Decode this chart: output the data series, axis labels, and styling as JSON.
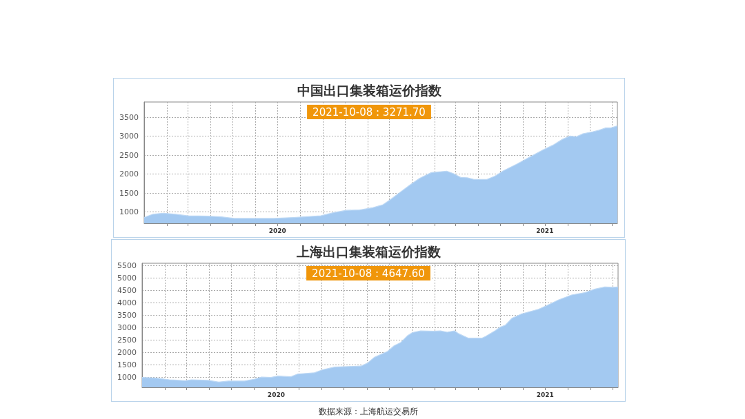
{
  "chart_data": [
    {
      "type": "area",
      "title": "中国出口集装箱运价指数",
      "color": "#a3c9f1",
      "x": [
        "2020-01-01",
        "2020-01-13",
        "2020-01-27",
        "2020-02-13",
        "2020-03-01",
        "2020-03-28",
        "2020-04-15",
        "2020-05-03",
        "2020-06-04",
        "2020-06-26",
        "2020-07-23",
        "2020-08-29",
        "2020-09-16",
        "2020-10-03",
        "2020-10-21",
        "2020-11-08",
        "2020-11-22",
        "2020-12-01",
        "2020-12-14",
        "2020-12-29",
        "2021-01-11",
        "2021-01-27",
        "2021-02-07",
        "2021-02-17",
        "2021-02-26",
        "2021-03-08",
        "2021-03-17",
        "2021-03-26",
        "2021-04-13",
        "2021-04-24",
        "2021-05-05",
        "2021-05-23",
        "2021-06-10",
        "2021-06-28",
        "2021-07-12",
        "2021-07-25",
        "2021-08-04",
        "2021-08-13",
        "2021-08-22",
        "2021-09-04",
        "2021-09-13",
        "2021-09-22",
        "2021-09-29",
        "2021-10-08"
      ],
      "values": [
        854,
        940,
        966,
        940,
        897,
        888,
        871,
        828,
        828,
        828,
        854,
        897,
        983,
        1043,
        1052,
        1112,
        1189,
        1309,
        1498,
        1713,
        1885,
        2039,
        2057,
        2074,
        2014,
        1911,
        1902,
        1859,
        1859,
        1945,
        2082,
        2254,
        2443,
        2632,
        2761,
        2916,
        3001,
        2984,
        3062,
        3113,
        3156,
        3216,
        3216,
        3271.7
      ],
      "xlim": [
        "2020-01-01",
        "2021-10-08"
      ],
      "xticks": [
        {
          "value": "2020-02-01",
          "label": null
        },
        {
          "value": "2020-03-01",
          "label": null
        },
        {
          "value": "2020-04-01",
          "label": null
        },
        {
          "value": "2020-05-01",
          "label": null
        },
        {
          "value": "2020-06-01",
          "label": null
        },
        {
          "value": "2020-07-01",
          "label": "2020"
        },
        {
          "value": "2020-08-01",
          "label": null
        },
        {
          "value": "2020-09-01",
          "label": null
        },
        {
          "value": "2020-10-01",
          "label": null
        },
        {
          "value": "2020-11-01",
          "label": null
        },
        {
          "value": "2020-12-01",
          "label": null
        },
        {
          "value": "2021-01-01",
          "label": null
        },
        {
          "value": "2021-02-01",
          "label": null
        },
        {
          "value": "2021-03-01",
          "label": null
        },
        {
          "value": "2021-04-01",
          "label": null
        },
        {
          "value": "2021-05-01",
          "label": null
        },
        {
          "value": "2021-06-01",
          "label": null
        },
        {
          "value": "2021-07-01",
          "label": "2021"
        },
        {
          "value": "2021-08-01",
          "label": null
        },
        {
          "value": "2021-09-01",
          "label": null
        },
        {
          "value": "2021-10-01",
          "label": null
        }
      ],
      "ylim": [
        700,
        3900
      ],
      "yticks": [
        1000,
        1500,
        2000,
        2500,
        3000,
        3500
      ],
      "grid": true,
      "marker": "none",
      "annotations": [
        "2021-10-08 : 3271.70"
      ]
    },
    {
      "type": "area",
      "title": "上海出口集装箱运价指数",
      "color": "#a3c9f1",
      "x": [
        "2020-01-01",
        "2020-01-20",
        "2020-02-07",
        "2020-02-29",
        "2020-03-08",
        "2020-03-31",
        "2020-04-14",
        "2020-04-27",
        "2020-05-19",
        "2020-06-02",
        "2020-06-11",
        "2020-06-24",
        "2020-07-03",
        "2020-07-21",
        "2020-07-30",
        "2020-08-22",
        "2020-09-02",
        "2020-09-18",
        "2020-10-24",
        "2020-11-02",
        "2020-11-11",
        "2020-11-29",
        "2020-12-08",
        "2020-12-17",
        "2020-12-26",
        "2021-01-02",
        "2021-01-13",
        "2021-01-31",
        "2021-02-09",
        "2021-02-18",
        "2021-02-28",
        "2021-03-06",
        "2021-03-19",
        "2021-04-06",
        "2021-04-11",
        "2021-04-24",
        "2021-05-01",
        "2021-05-08",
        "2021-05-17",
        "2021-05-30",
        "2021-06-22",
        "2021-07-05",
        "2021-07-19",
        "2021-08-06",
        "2021-08-24",
        "2021-09-07",
        "2021-09-20",
        "2021-10-01",
        "2021-10-08"
      ],
      "values": [
        1000,
        973,
        906,
        866,
        906,
        879,
        812,
        853,
        853,
        933,
        1013,
        1000,
        1054,
        1027,
        1134,
        1188,
        1308,
        1415,
        1456,
        1576,
        1804,
        2045,
        2273,
        2407,
        2675,
        2809,
        2876,
        2863,
        2876,
        2822,
        2876,
        2755,
        2581,
        2581,
        2648,
        2876,
        3023,
        3104,
        3385,
        3559,
        3747,
        3921,
        4122,
        4323,
        4417,
        4564,
        4645,
        4631,
        4647.6
      ],
      "xlim": [
        "2020-01-01",
        "2021-10-08"
      ],
      "xticks": [
        {
          "value": "2020-02-01",
          "label": null
        },
        {
          "value": "2020-03-01",
          "label": null
        },
        {
          "value": "2020-04-01",
          "label": null
        },
        {
          "value": "2020-05-01",
          "label": null
        },
        {
          "value": "2020-06-01",
          "label": null
        },
        {
          "value": "2020-07-01",
          "label": "2020"
        },
        {
          "value": "2020-08-01",
          "label": null
        },
        {
          "value": "2020-09-01",
          "label": null
        },
        {
          "value": "2020-10-01",
          "label": null
        },
        {
          "value": "2020-11-01",
          "label": null
        },
        {
          "value": "2020-12-01",
          "label": null
        },
        {
          "value": "2021-01-01",
          "label": null
        },
        {
          "value": "2021-02-01",
          "label": null
        },
        {
          "value": "2021-03-01",
          "label": null
        },
        {
          "value": "2021-04-01",
          "label": null
        },
        {
          "value": "2021-05-01",
          "label": null
        },
        {
          "value": "2021-06-01",
          "label": null
        },
        {
          "value": "2021-07-01",
          "label": "2021"
        },
        {
          "value": "2021-08-01",
          "label": null
        },
        {
          "value": "2021-09-01",
          "label": null
        },
        {
          "value": "2021-10-01",
          "label": null
        }
      ],
      "ylim": [
        600,
        5600
      ],
      "yticks": [
        1000,
        1500,
        2000,
        2500,
        3000,
        3500,
        4000,
        4500,
        5000,
        5500
      ],
      "grid": true,
      "marker": "none",
      "annotations": [
        "2021-10-08 : 4647.60",
        "数据来源：上海航运交易所"
      ]
    }
  ]
}
